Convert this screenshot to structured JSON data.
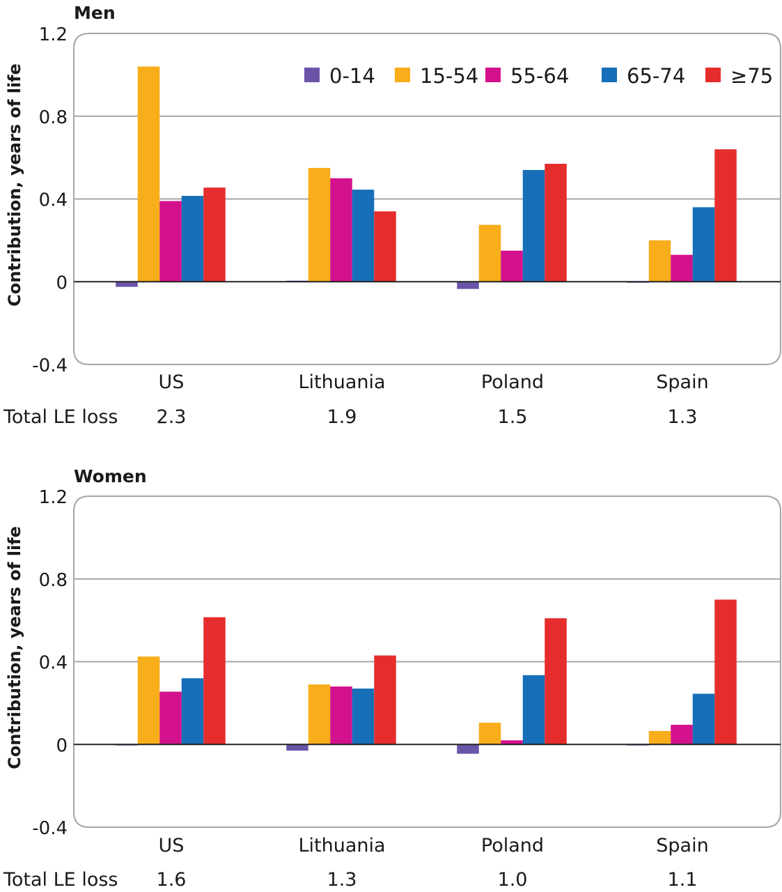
{
  "chart_data": [
    {
      "type": "bar",
      "title": "Men",
      "ylabel": "Contribution, years of life",
      "xlabel": "",
      "ylim": [
        -0.4,
        1.2
      ],
      "yticks": [
        "1.2",
        "0.8",
        "0.4",
        "0",
        "-0.4"
      ],
      "ytick_values": [
        1.2,
        0.8,
        0.4,
        0,
        -0.4
      ],
      "grid": true,
      "legend_position": "top-right",
      "categories": [
        "US",
        "Lithuania",
        "Poland",
        "Spain"
      ],
      "series": [
        {
          "name": "0-14",
          "color": "#6a54a8",
          "values": [
            -0.025,
            0.005,
            -0.035,
            -0.005
          ]
        },
        {
          "name": "15-54",
          "color": "#f8ad1a",
          "values": [
            1.04,
            0.55,
            0.275,
            0.2
          ]
        },
        {
          "name": "55-64",
          "color": "#d4118c",
          "values": [
            0.39,
            0.5,
            0.15,
            0.13
          ]
        },
        {
          "name": "65-74",
          "color": "#166fb8",
          "values": [
            0.415,
            0.445,
            0.54,
            0.36
          ]
        },
        {
          "name": "≥75",
          "color": "#e62d2d",
          "values": [
            0.455,
            0.34,
            0.57,
            0.64
          ]
        }
      ],
      "footer_label": "Total LE loss",
      "footer_values": [
        "2.3",
        "1.9",
        "1.5",
        "1.3"
      ]
    },
    {
      "type": "bar",
      "title": "Women",
      "ylabel": "Contribution, years of life",
      "xlabel": "",
      "ylim": [
        -0.4,
        1.2
      ],
      "yticks": [
        "1.2",
        "0.8",
        "0.4",
        "0",
        "-0.4"
      ],
      "ytick_values": [
        1.2,
        0.8,
        0.4,
        0,
        -0.4
      ],
      "grid": true,
      "legend_position": "none",
      "categories": [
        "US",
        "Lithuania",
        "Poland",
        "Spain"
      ],
      "series": [
        {
          "name": "0-14",
          "color": "#6a54a8",
          "values": [
            -0.005,
            -0.03,
            -0.045,
            -0.005
          ]
        },
        {
          "name": "15-54",
          "color": "#f8ad1a",
          "values": [
            0.425,
            0.29,
            0.105,
            0.065
          ]
        },
        {
          "name": "55-64",
          "color": "#d4118c",
          "values": [
            0.255,
            0.28,
            0.02,
            0.095
          ]
        },
        {
          "name": "65-74",
          "color": "#166fb8",
          "values": [
            0.32,
            0.27,
            0.335,
            0.245
          ]
        },
        {
          "name": "≥75",
          "color": "#e62d2d",
          "values": [
            0.615,
            0.43,
            0.61,
            0.7
          ]
        }
      ],
      "footer_label": "Total LE loss",
      "footer_values": [
        "1.6",
        "1.3",
        "1.0",
        "1.1"
      ]
    }
  ]
}
